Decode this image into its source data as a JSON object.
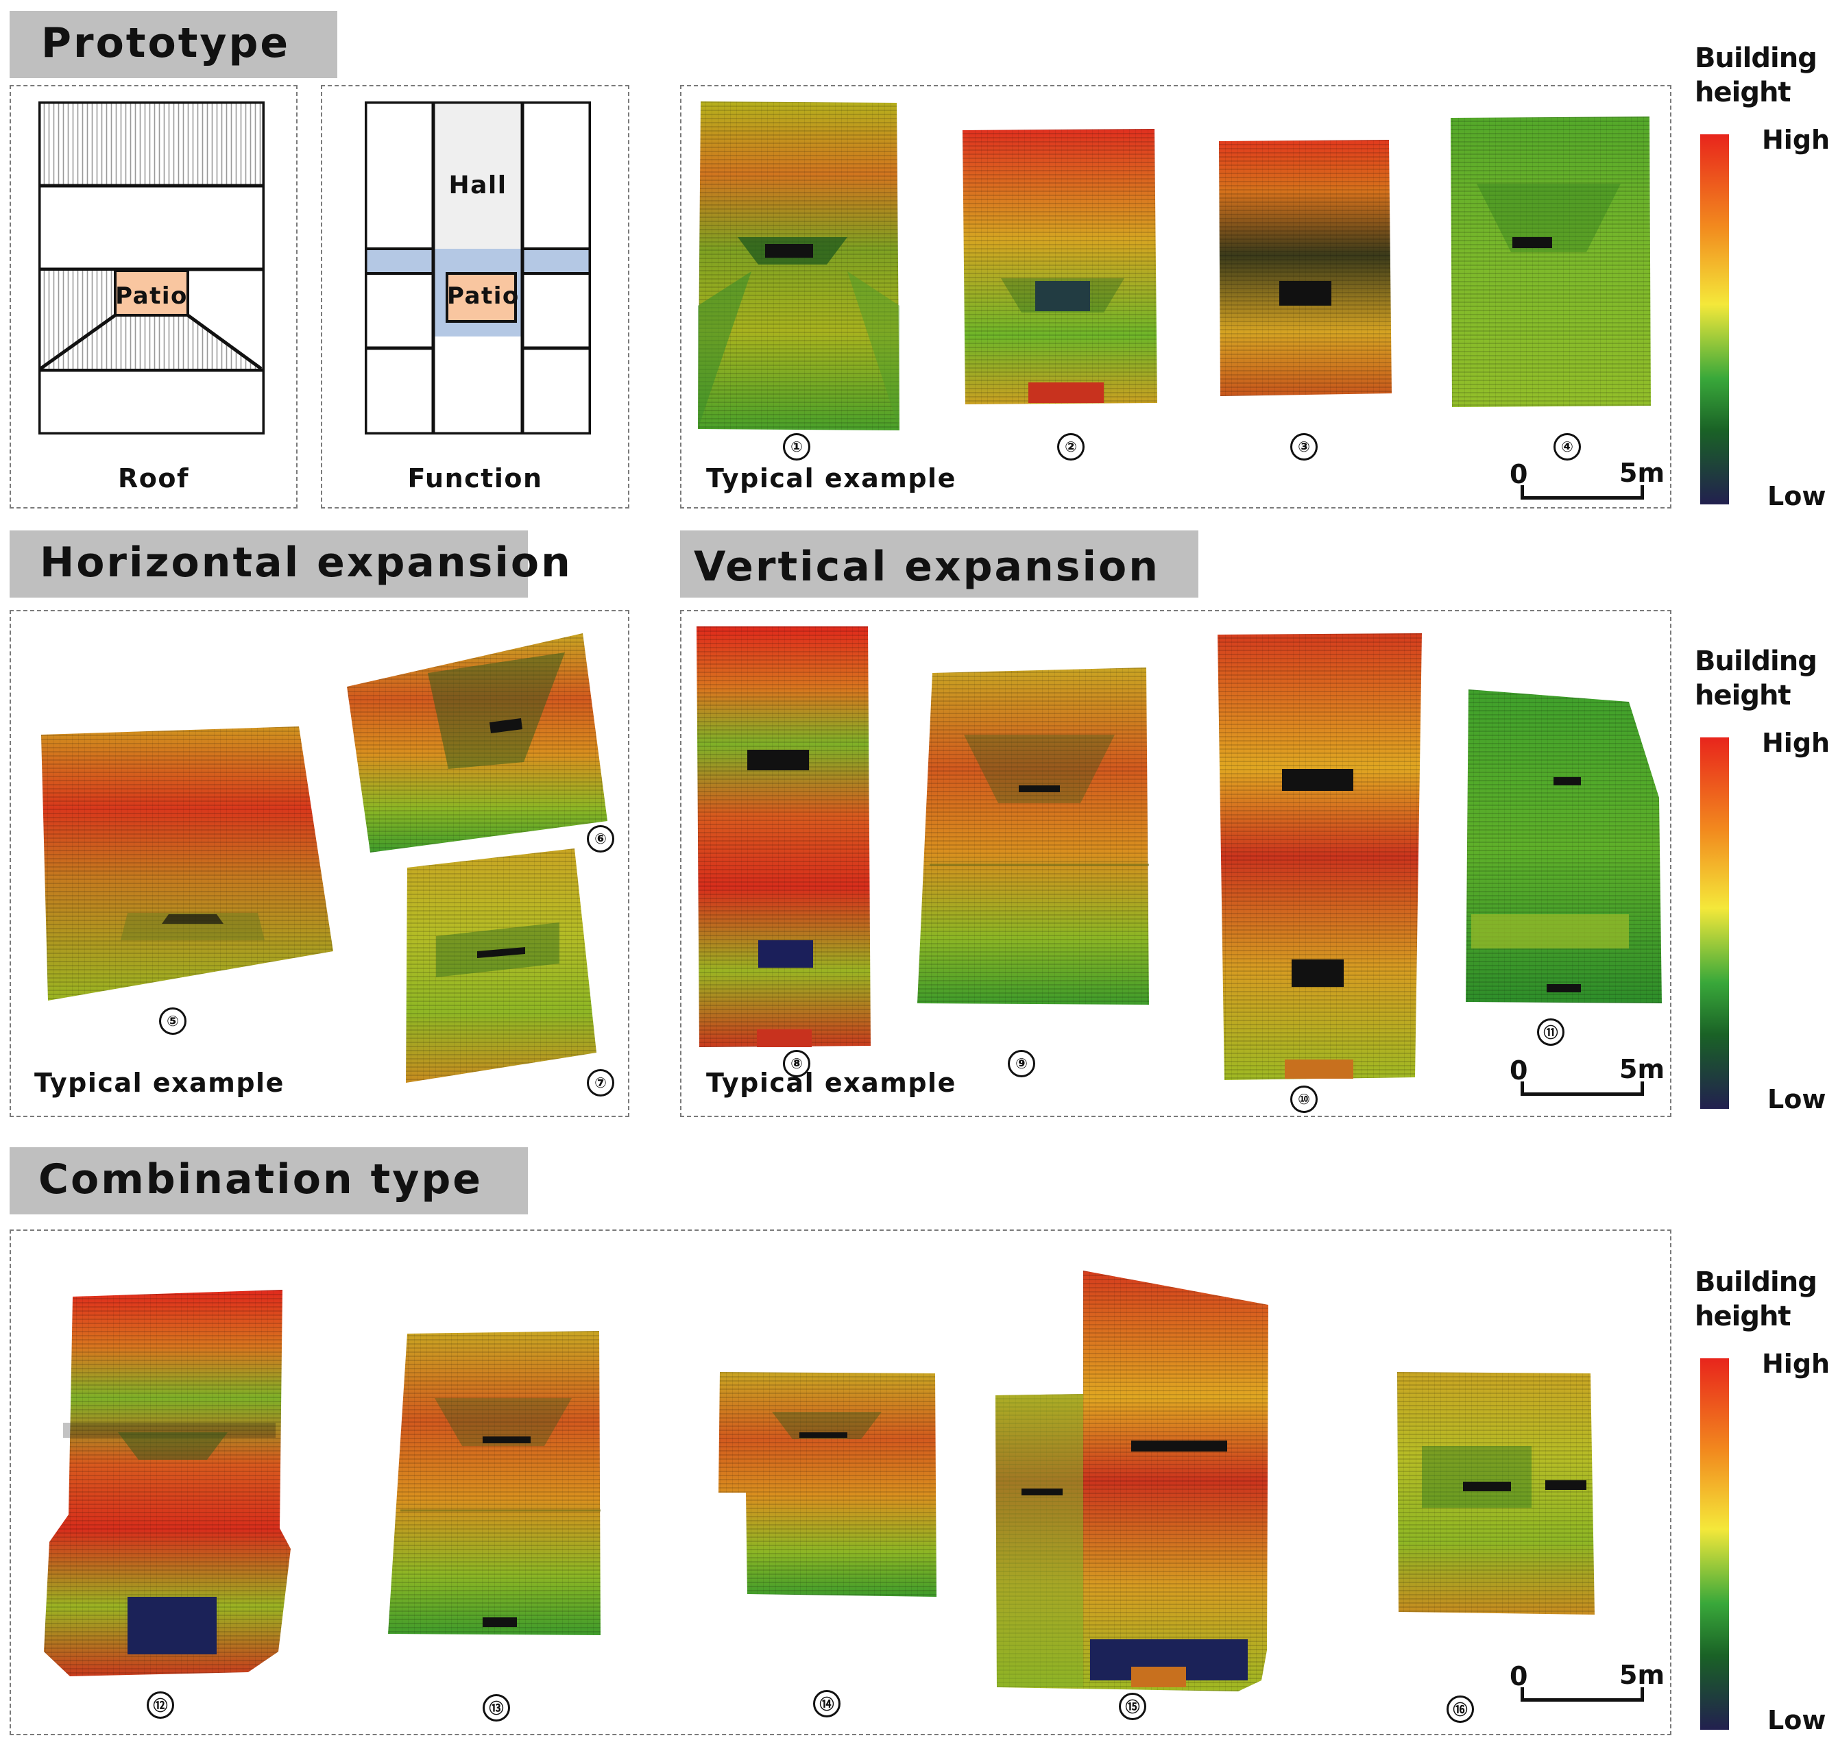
{
  "sections": {
    "prototype": "Prototype",
    "horizontal": "Horizontal expansion",
    "vertical": "Vertical expansion",
    "combination": "Combination type"
  },
  "prototype_diagrams": {
    "roof_label": "Roof",
    "function_label": "Function",
    "patio_label": "Patio",
    "hall_label": "Hall"
  },
  "typical_example": "Typical example",
  "example_numbers": [
    "①",
    "②",
    "③",
    "④",
    "⑤",
    "⑥",
    "⑦",
    "⑧",
    "⑨",
    "⑩",
    "⑪",
    "⑫",
    "⑬",
    "⑭",
    "⑮",
    "⑯"
  ],
  "legend": {
    "title_line1": "Building",
    "title_line2": "height",
    "high": "High",
    "low": "Low"
  },
  "scale_bar": {
    "start": "0",
    "end": "5m"
  },
  "colors": {
    "header_bg": "#bfbfbf",
    "patio_fill": "#f9c6a0",
    "corridor_fill": "#b4c8e4",
    "hall_fill": "#efefef"
  }
}
